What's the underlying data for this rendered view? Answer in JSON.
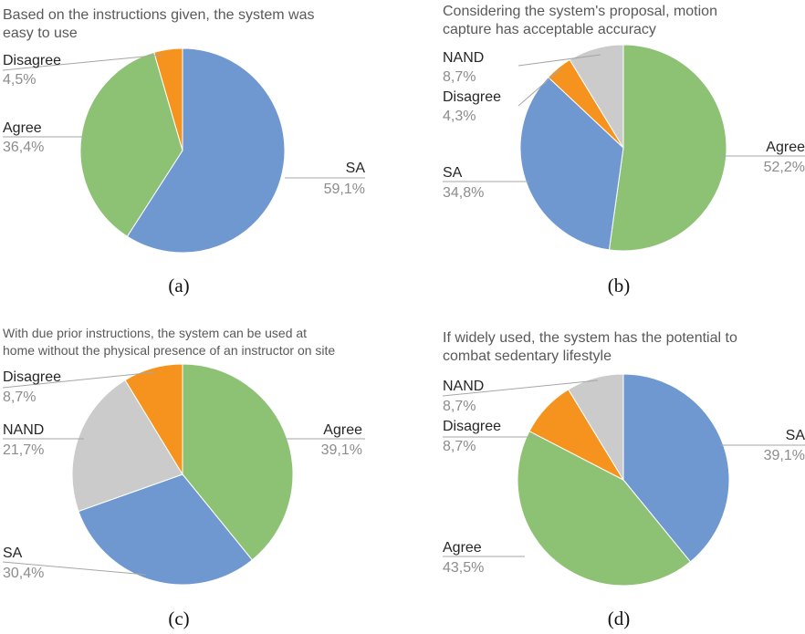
{
  "colors": {
    "SA": "#6E98CF",
    "Agree": "#8DC275",
    "Disagree": "#F6931F",
    "NAND": "#CBCBCB"
  },
  "chart_data": [
    {
      "type": "pie",
      "title_lines": [
        "Based on the instructions given, the system was",
        "easy to use"
      ],
      "caption": "(a)",
      "slices": [
        {
          "label": "SA",
          "value": 59.1,
          "value_text": "59,1%",
          "color": "#6E98CF"
        },
        {
          "label": "Agree",
          "value": 36.4,
          "value_text": "36,4%",
          "color": "#8DC275"
        },
        {
          "label": "Disagree",
          "value": 4.5,
          "value_text": "4,5%",
          "color": "#F6931F"
        }
      ]
    },
    {
      "type": "pie",
      "title_lines": [
        "Considering the system's proposal, motion",
        "capture has acceptable accuracy"
      ],
      "caption": "(b)",
      "slices": [
        {
          "label": "Agree",
          "value": 52.2,
          "value_text": "52,2%",
          "color": "#8DC275"
        },
        {
          "label": "SA",
          "value": 34.8,
          "value_text": "34,8%",
          "color": "#6E98CF"
        },
        {
          "label": "Disagree",
          "value": 4.3,
          "value_text": "4,3%",
          "color": "#F6931F"
        },
        {
          "label": "NAND",
          "value": 8.7,
          "value_text": "8,7%",
          "color": "#CBCBCB"
        }
      ]
    },
    {
      "type": "pie",
      "title_lines": [
        "With due prior instructions, the system can be used at",
        "home without the physical presence of an instructor on site"
      ],
      "caption": "(c)",
      "slices": [
        {
          "label": "Agree",
          "value": 39.1,
          "value_text": "39,1%",
          "color": "#8DC275"
        },
        {
          "label": "SA",
          "value": 30.4,
          "value_text": "30,4%",
          "color": "#6E98CF"
        },
        {
          "label": "NAND",
          "value": 21.7,
          "value_text": "21,7%",
          "color": "#CBCBCB"
        },
        {
          "label": "Disagree",
          "value": 8.7,
          "value_text": "8,7%",
          "color": "#F6931F"
        }
      ]
    },
    {
      "type": "pie",
      "title_lines": [
        "If widely used, the system has the potential to",
        "combat sedentary lifestyle"
      ],
      "caption": "(d)",
      "slices": [
        {
          "label": "SA",
          "value": 39.1,
          "value_text": "39,1%",
          "color": "#6E98CF"
        },
        {
          "label": "Agree",
          "value": 43.5,
          "value_text": "43,5%",
          "color": "#8DC275"
        },
        {
          "label": "Disagree",
          "value": 8.7,
          "value_text": "8,7%",
          "color": "#F6931F"
        },
        {
          "label": "NAND",
          "value": 8.7,
          "value_text": "8,7%",
          "color": "#CBCBCB"
        }
      ]
    }
  ]
}
